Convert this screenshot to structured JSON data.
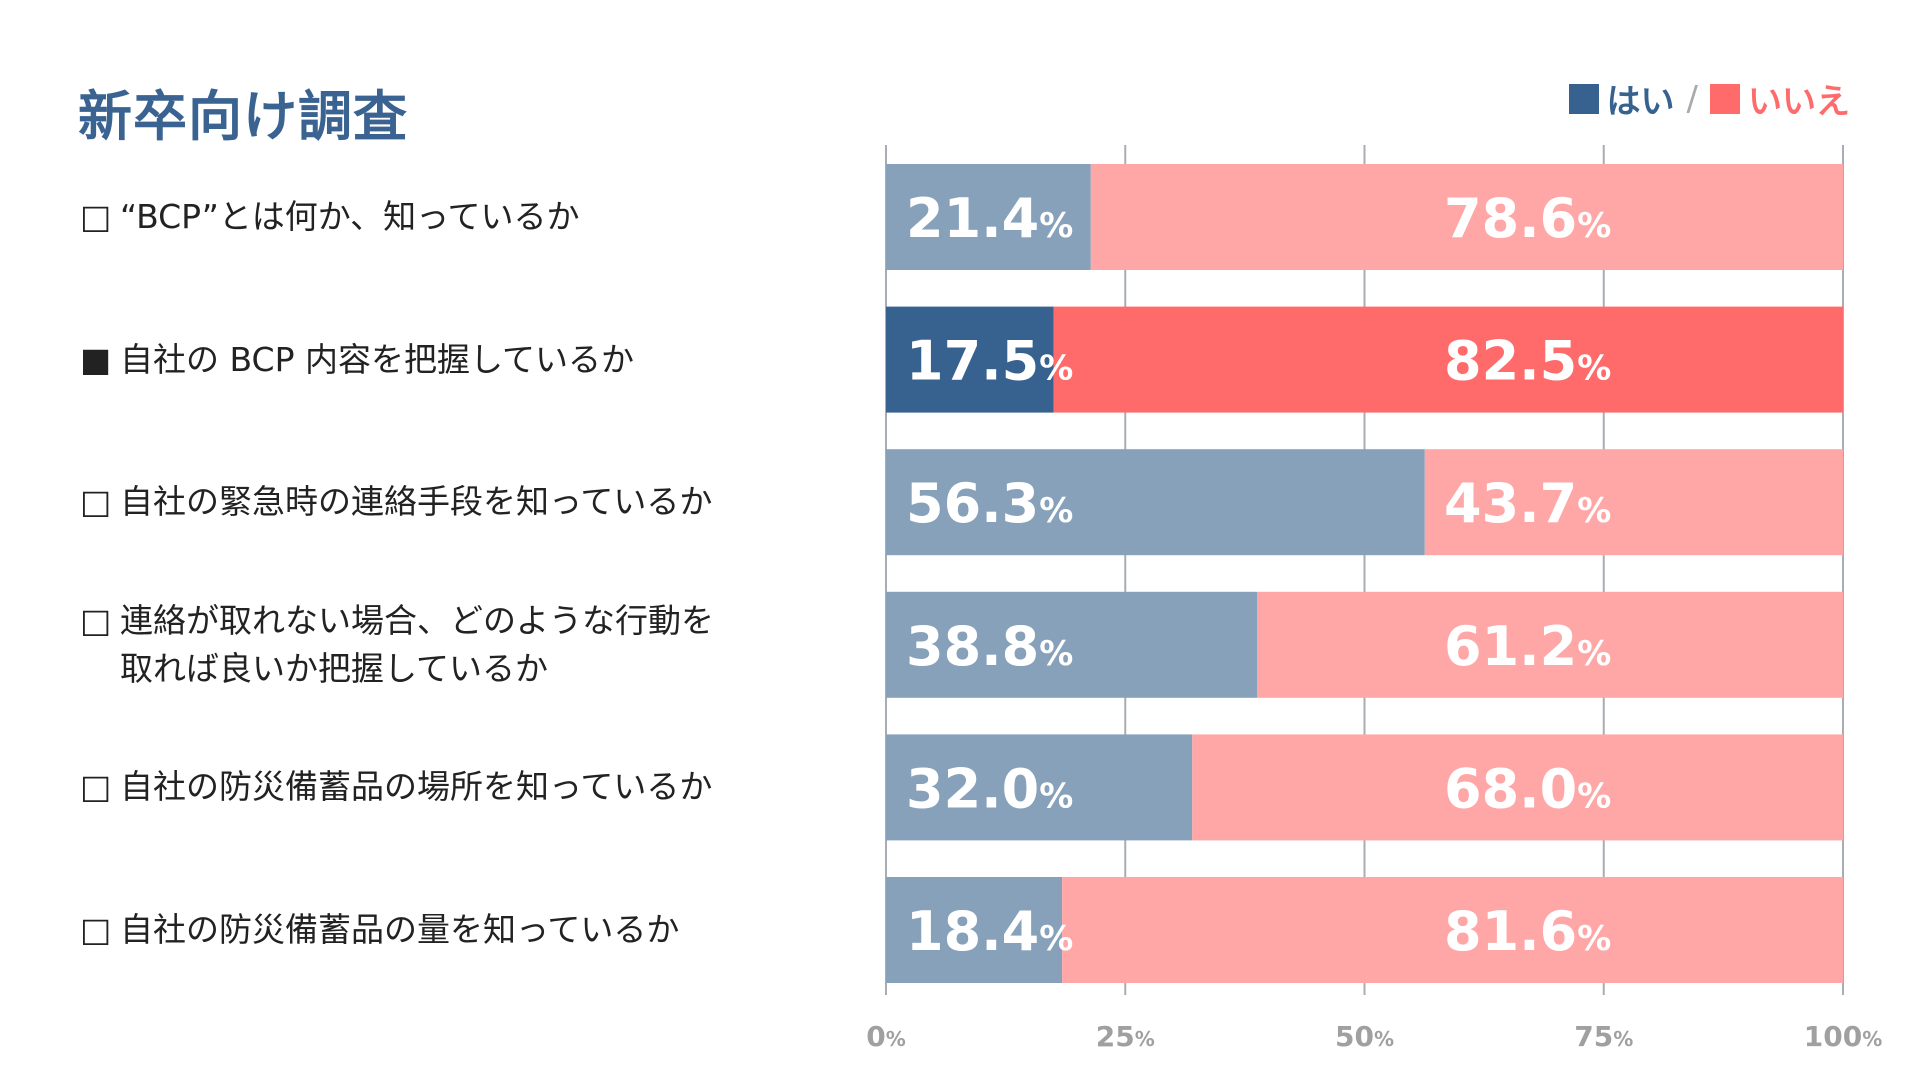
{
  "title": "新卒向け調査",
  "legend": {
    "yes": "はい",
    "separator": "/",
    "no": "いいえ"
  },
  "colors": {
    "yes": "#87a1ba",
    "yes_highlight": "#37628f",
    "no": "#ffa7a7",
    "no_highlight": "#ff6b6b",
    "grid": "#a8adb3",
    "axis_text": "#a0a0a0",
    "title": "#3a6391"
  },
  "questions": [
    {
      "marker": "□",
      "text": "“BCP”とは何か、知っているか",
      "highlight": false
    },
    {
      "marker": "■",
      "text": "自社の BCP 内容を把握しているか",
      "highlight": true
    },
    {
      "marker": "□",
      "text": "自社の緊急時の連絡手段を知っているか",
      "highlight": false
    },
    {
      "marker": "□",
      "text": "連絡が取れない場合、どのような行動を取れば良いか把握しているか",
      "lines": [
        "連絡が取れない場合、どのような行動を",
        "取れば良いか把握しているか"
      ],
      "highlight": false
    },
    {
      "marker": "□",
      "text": "自社の防災備蓄品の場所を知っているか",
      "highlight": false
    },
    {
      "marker": "□",
      "text": "自社の防災備蓄品の量を知っているか",
      "highlight": false
    }
  ],
  "chart_data": {
    "type": "bar",
    "orientation": "horizontal",
    "stacked": true,
    "categories": [
      "“BCP”とは何か、知っているか",
      "自社の BCP 内容を把握しているか",
      "自社の緊急時の連絡手段を知っているか",
      "連絡が取れない場合、どのような行動を取れば良いか把握しているか",
      "自社の防災備蓄品の場所を知っているか",
      "自社の防災備蓄品の量を知っているか"
    ],
    "series": [
      {
        "name": "はい",
        "values": [
          21.4,
          17.5,
          56.3,
          38.8,
          32.0,
          18.4
        ]
      },
      {
        "name": "いいえ",
        "values": [
          78.6,
          82.5,
          43.7,
          61.2,
          68.0,
          81.6
        ]
      }
    ],
    "value_labels": {
      "yes": [
        "21.4",
        "17.5",
        "56.3",
        "38.8",
        "32.0",
        "18.4"
      ],
      "no": [
        "78.6",
        "82.5",
        "43.7",
        "61.2",
        "68.0",
        "81.6"
      ],
      "unit": "%"
    },
    "xlim": [
      0,
      100
    ],
    "xticks": [
      "0",
      "25",
      "50",
      "75",
      "100"
    ],
    "tick_unit": "%",
    "grid": true,
    "legend_position": "top-right"
  }
}
